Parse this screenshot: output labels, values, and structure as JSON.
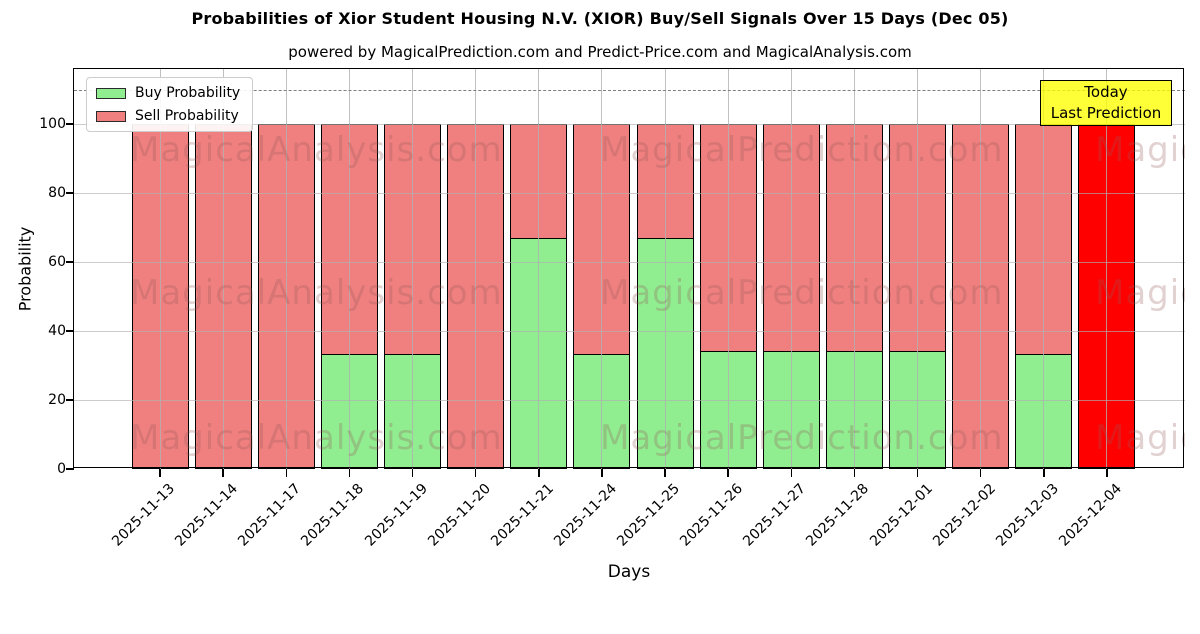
{
  "chart_data": {
    "type": "bar",
    "stacked": true,
    "title": "Probabilities of Xior Student Housing N.V. (XIOR) Buy/Sell Signals Over 15 Days (Dec 05)",
    "subtitle": "powered by MagicalPrediction.com and Predict-Price.com and MagicalAnalysis.com",
    "xlabel": "Days",
    "ylabel": "Probability",
    "categories": [
      "2025-11-13",
      "2025-11-14",
      "2025-11-17",
      "2025-11-18",
      "2025-11-19",
      "2025-11-20",
      "2025-11-21",
      "2025-11-24",
      "2025-11-25",
      "2025-11-26",
      "2025-11-27",
      "2025-11-28",
      "2025-12-01",
      "2025-12-02",
      "2025-12-03",
      "2025-12-04"
    ],
    "series": [
      {
        "name": "Buy Probability",
        "color": "#90EE90",
        "values": [
          0,
          0,
          0,
          33,
          33,
          0,
          66.7,
          33,
          66.7,
          34,
          34,
          34,
          34,
          0,
          33,
          0
        ]
      },
      {
        "name": "Sell Probability",
        "color": "#F08080",
        "values": [
          100,
          100,
          100,
          67,
          67,
          100,
          33.3,
          67,
          33.3,
          66,
          66,
          66,
          66,
          100,
          67,
          100
        ]
      }
    ],
    "highlight": {
      "index": 15,
      "bar_color": "#FF0000",
      "box_color": "#FFFF00",
      "label_line1": "Today",
      "label_line2": "Last Prediction"
    },
    "yticks": [
      0,
      20,
      40,
      60,
      80,
      100
    ],
    "ylim": [
      0,
      116
    ],
    "dashed_line_y": 110,
    "grid": true,
    "legend_position": "upper left",
    "watermarks": [
      "MagicalAnalysis.com",
      "MagicalPrediction.com"
    ],
    "colors": {
      "bar_edge": "#000000",
      "grid": "#b0b0b0",
      "dashed_line": "#7f7f7f",
      "watermark_tint": "#965858"
    }
  }
}
